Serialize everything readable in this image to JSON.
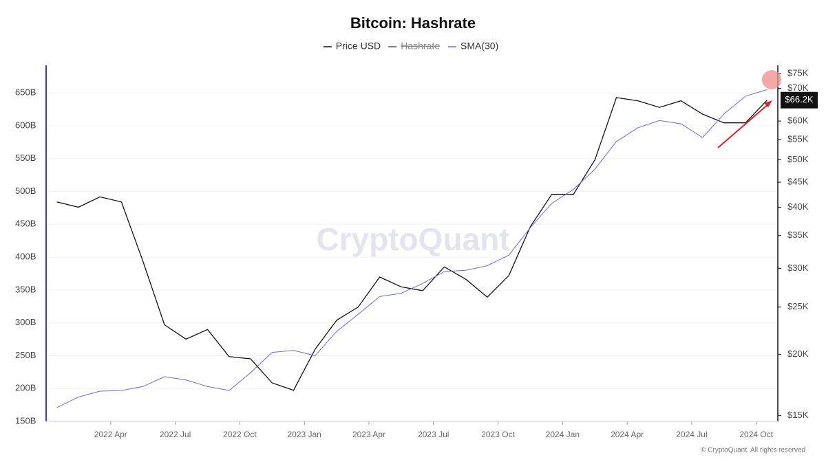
{
  "chart_data": {
    "type": "line",
    "title": "Bitcoin: Hashrate",
    "watermark": "CryptoQuant",
    "footer": "© CryptoQuant. All rights reserved",
    "x": [
      "2022-01",
      "2022-02",
      "2022-03",
      "2022-04",
      "2022-05",
      "2022-06",
      "2022-07",
      "2022-08",
      "2022-09",
      "2022-10",
      "2022-11",
      "2022-12",
      "2023-01",
      "2023-02",
      "2023-03",
      "2023-04",
      "2023-05",
      "2023-06",
      "2023-07",
      "2023-08",
      "2023-09",
      "2023-10",
      "2023-11",
      "2023-12",
      "2024-01",
      "2024-02",
      "2024-03",
      "2024-04",
      "2024-05",
      "2024-06",
      "2024-07",
      "2024-08",
      "2024-09",
      "2024-10"
    ],
    "xlim": [
      "2022-01",
      "2024-10"
    ],
    "xticks": [
      {
        "value": "2022-04",
        "label": "2022 Apr"
      },
      {
        "value": "2022-07",
        "label": "2022 Jul"
      },
      {
        "value": "2022-10",
        "label": "2022 Oct"
      },
      {
        "value": "2023-01",
        "label": "2023 Jan"
      },
      {
        "value": "2023-04",
        "label": "2023 Apr"
      },
      {
        "value": "2023-07",
        "label": "2023 Jul"
      },
      {
        "value": "2023-10",
        "label": "2023 Oct"
      },
      {
        "value": "2024-01",
        "label": "2024 Jan"
      },
      {
        "value": "2024-04",
        "label": "2024 Apr"
      },
      {
        "value": "2024-07",
        "label": "2024 Jul"
      },
      {
        "value": "2024-10",
        "label": "2024 Oct"
      }
    ],
    "ylim": [
      150,
      692
    ],
    "yticks": [
      {
        "value": 150,
        "label": "150B"
      },
      {
        "value": 200,
        "label": "200B"
      },
      {
        "value": 250,
        "label": "250B"
      },
      {
        "value": 300,
        "label": "300B"
      },
      {
        "value": 350,
        "label": "350B"
      },
      {
        "value": 400,
        "label": "400B"
      },
      {
        "value": 450,
        "label": "450B"
      },
      {
        "value": 500,
        "label": "500B"
      },
      {
        "value": 550,
        "label": "550B"
      },
      {
        "value": 600,
        "label": "600B"
      },
      {
        "value": 650,
        "label": "650B"
      }
    ],
    "y2lim": [
      14600,
      78000
    ],
    "y2scale": "log",
    "y2ticks": [
      {
        "value": 15000,
        "label": "$15K"
      },
      {
        "value": 20000,
        "label": "$20K"
      },
      {
        "value": 25000,
        "label": "$25K"
      },
      {
        "value": 30000,
        "label": "$30K"
      },
      {
        "value": 35000,
        "label": "$35K"
      },
      {
        "value": 40000,
        "label": "$40K"
      },
      {
        "value": 45000,
        "label": "$45K"
      },
      {
        "value": 50000,
        "label": "$50K"
      },
      {
        "value": 55000,
        "label": "$55K"
      },
      {
        "value": 60000,
        "label": "$60K"
      },
      {
        "value": 70000,
        "label": "$70K"
      },
      {
        "value": 75000,
        "label": "$75K"
      }
    ],
    "grid": true,
    "series": [
      {
        "name": "Price USD",
        "color": "#111111",
        "axis": "y2",
        "values": [
          41000,
          40000,
          42000,
          41000,
          31000,
          23000,
          21500,
          22500,
          19800,
          19600,
          17500,
          16900,
          20500,
          23500,
          25000,
          28800,
          27500,
          27000,
          30200,
          28500,
          26200,
          29000,
          36500,
          42500,
          42500,
          50000,
          67000,
          66000,
          64000,
          66000,
          62000,
          59500,
          59500,
          66200
        ],
        "value_labels": [
          null,
          null,
          null,
          null,
          null,
          null,
          null,
          null,
          null,
          null,
          null,
          null,
          null,
          null,
          null,
          null,
          null,
          null,
          null,
          null,
          null,
          null,
          null,
          null,
          null,
          null,
          null,
          null,
          null,
          null,
          null,
          null,
          null,
          "$66.2K"
        ]
      },
      {
        "name": "Hashrate",
        "color": "#555555",
        "visible": false
      },
      {
        "name": "SMA(30)",
        "color": "#6b6bdc",
        "values": [
          171,
          187,
          196,
          197,
          203,
          218,
          213,
          203,
          197,
          224,
          255,
          258,
          250,
          287,
          313,
          340,
          345,
          360,
          378,
          380,
          387,
          403,
          445,
          482,
          503,
          534,
          576,
          597,
          608,
          603,
          582,
          618,
          645,
          655
        ]
      }
    ]
  }
}
